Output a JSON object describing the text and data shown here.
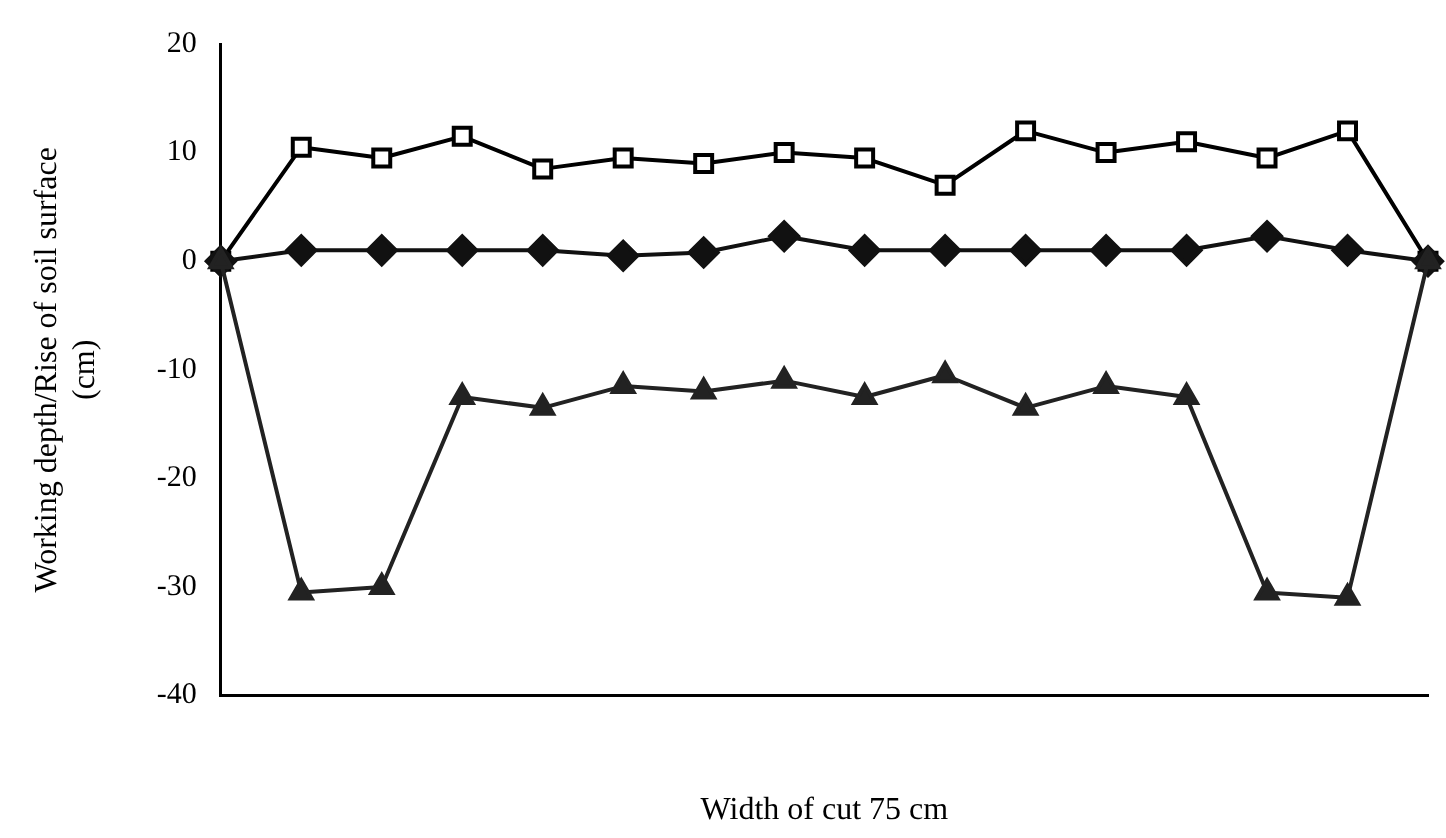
{
  "chart_data": {
    "type": "line",
    "xlabel": "Width of cut 75 cm",
    "ylabel": "Working depth/Rise of soil surface (cm)",
    "categories": [
      null,
      null,
      null,
      null,
      null,
      null,
      null,
      null,
      null,
      null,
      null,
      null,
      null,
      null,
      null,
      null
    ],
    "ylim": [
      -40,
      20
    ],
    "yticks": [
      -40,
      -30,
      -20,
      -10,
      0,
      10,
      20
    ],
    "grid": false,
    "legend": false,
    "line_style": "solid",
    "series": [
      {
        "color": "#000000",
        "marker": "square",
        "values": [
          0,
          10.5,
          9.5,
          11.5,
          8.5,
          9.5,
          9,
          10,
          9.5,
          7,
          12,
          10,
          11,
          9.5,
          12,
          0
        ]
      },
      {
        "color": "#111111",
        "marker": "diamond",
        "values": [
          0,
          1,
          1,
          1,
          1,
          0.5,
          0.8,
          2.3,
          1,
          1,
          1,
          1,
          1,
          2.3,
          1,
          0
        ]
      },
      {
        "color": "#222222",
        "marker": "triangle",
        "values": [
          0,
          -30.5,
          -30,
          -12.5,
          -13.5,
          -11.5,
          -12,
          -11,
          -12.5,
          -10.5,
          -13.5,
          -11.5,
          -12.5,
          -30.5,
          -31,
          0
        ]
      }
    ]
  }
}
